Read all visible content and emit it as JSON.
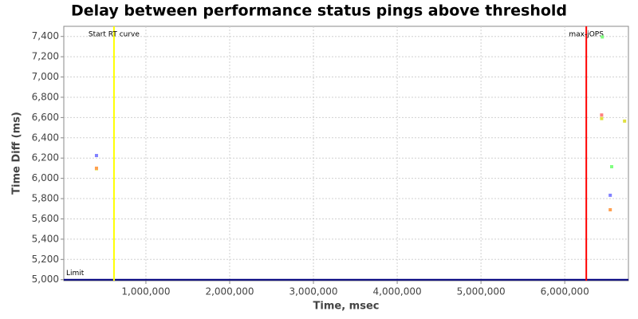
{
  "chart_data": {
    "type": "scatter",
    "title": "Delay between performance status pings above threshold",
    "x_label": "Time, msec",
    "y_label": "Time Diff (ms)",
    "xlim": [
      20000,
      6760000
    ],
    "ylim": [
      4990,
      7500
    ],
    "xticks": [
      {
        "value": 1000000,
        "label": "1,000,000"
      },
      {
        "value": 2000000,
        "label": "2,000,000"
      },
      {
        "value": 3000000,
        "label": "3,000,000"
      },
      {
        "value": 4000000,
        "label": "4,000,000"
      },
      {
        "value": 5000000,
        "label": "5,000,000"
      },
      {
        "value": 6000000,
        "label": "6,000,000"
      }
    ],
    "yticks": [
      {
        "value": 5000,
        "label": "5,000"
      },
      {
        "value": 5200,
        "label": "5,200"
      },
      {
        "value": 5400,
        "label": "5,400"
      },
      {
        "value": 5600,
        "label": "5,600"
      },
      {
        "value": 5800,
        "label": "5,800"
      },
      {
        "value": 6000,
        "label": "6,000"
      },
      {
        "value": 6200,
        "label": "6,200"
      },
      {
        "value": 6400,
        "label": "6,400"
      },
      {
        "value": 6600,
        "label": "6,600"
      },
      {
        "value": 6800,
        "label": "6,800"
      },
      {
        "value": 7000,
        "label": "7,000"
      },
      {
        "value": 7200,
        "label": "7,200"
      },
      {
        "value": 7400,
        "label": "7,400"
      }
    ],
    "grid": true,
    "series": [
      {
        "color": "#8080ff",
        "x": [
          410000,
          6543000
        ],
        "values": [
          6225,
          5833
        ]
      },
      {
        "color": "#e0e040",
        "x": [
          410000,
          6440000,
          6714000
        ],
        "values": [
          6095,
          6590,
          6565
        ]
      },
      {
        "color": "#ffa050",
        "x": [
          410000,
          6543000
        ],
        "values": [
          6100,
          5690
        ]
      },
      {
        "color": "#ff8080",
        "x": [
          6440000
        ],
        "values": [
          6625
        ]
      },
      {
        "color": "#80ff80",
        "x": [
          6448000,
          6560000
        ],
        "values": [
          7395,
          6115
        ]
      }
    ],
    "x_markers": [
      {
        "label": "Start RT curve",
        "value": 619000,
        "color": "#ffff00"
      },
      {
        "label": "max-jOPS",
        "value": 6257000,
        "color": "#ff0000"
      }
    ],
    "y_markers": [
      {
        "label": "Limit",
        "value": 5000,
        "color": "#000080"
      }
    ]
  }
}
